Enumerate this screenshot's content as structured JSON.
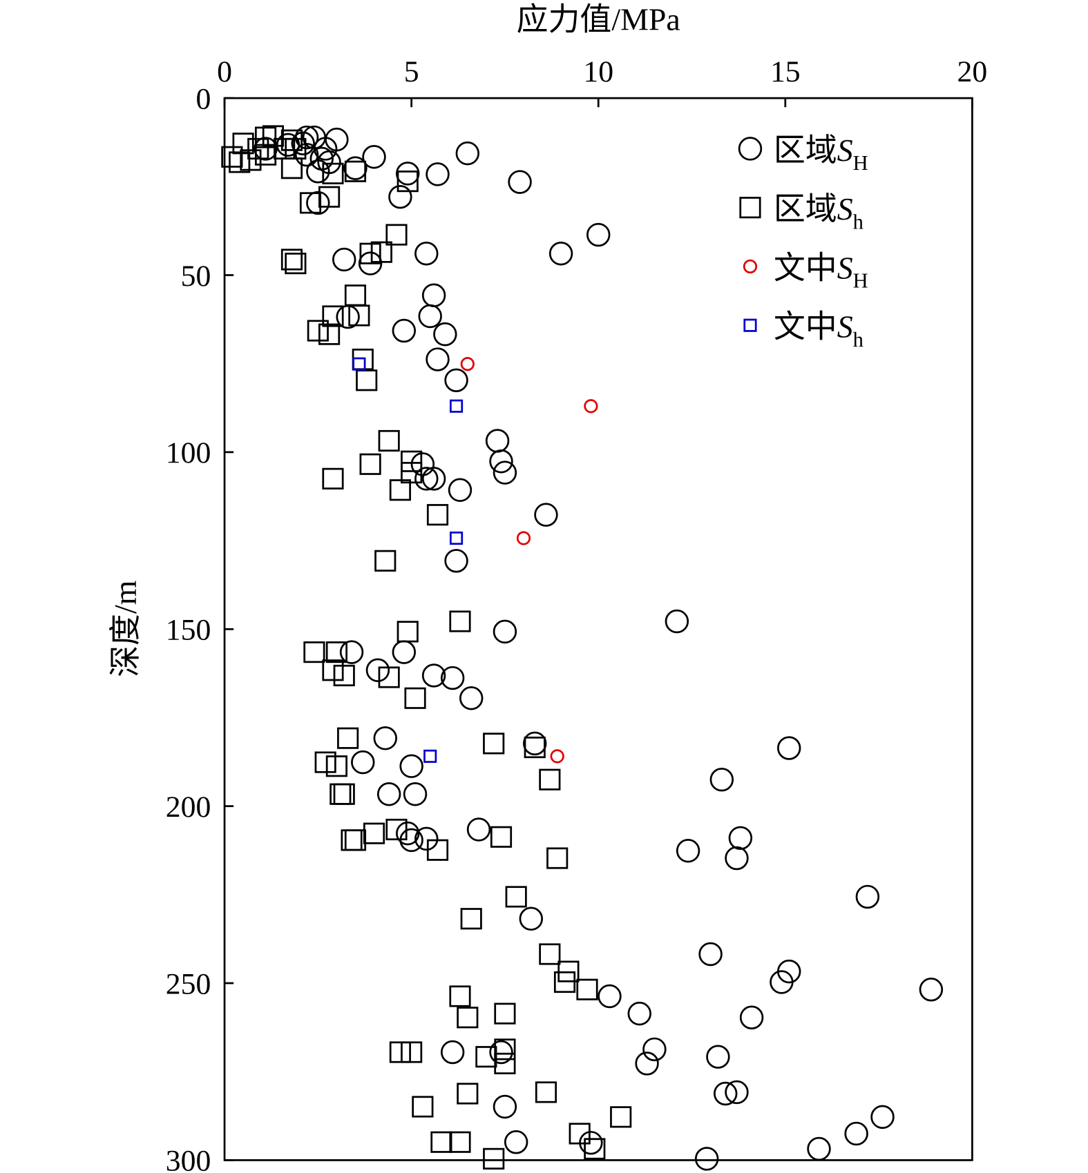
{
  "chart_data": {
    "type": "scatter",
    "title": "",
    "xlabel": "应力值/MPa",
    "ylabel": "深度/m",
    "xlim": [
      0,
      20
    ],
    "ylim": [
      0,
      300
    ],
    "y_inverted": true,
    "x_axis_position": "top",
    "xticks": [
      "0",
      "5",
      "10",
      "15",
      "20"
    ],
    "yticks": [
      "0",
      "50",
      "100",
      "150",
      "200",
      "250",
      "300"
    ],
    "grid": false,
    "legend_position": "top-right",
    "series": [
      {
        "name": "区域S_H",
        "label": {
          "prefix": "区域",
          "symbol": "S",
          "sub": "H"
        },
        "marker": "circle",
        "size": "large",
        "color": "#000000",
        "points": [
          [
            6.5,
            15.6
          ],
          [
            7.9,
            23.7
          ],
          [
            10.0,
            38.6
          ],
          [
            9.0,
            43.9
          ],
          [
            4.0,
            16.6
          ],
          [
            5.7,
            21.5
          ],
          [
            4.9,
            21.3
          ],
          [
            4.7,
            27.9
          ],
          [
            3.5,
            19.8
          ],
          [
            3.0,
            11.7
          ],
          [
            2.4,
            11.1
          ],
          [
            2.2,
            11.1
          ],
          [
            2.1,
            12.8
          ],
          [
            2.7,
            14.3
          ],
          [
            2.6,
            17.1
          ],
          [
            2.8,
            18.1
          ],
          [
            2.5,
            20.7
          ],
          [
            2.2,
            16.0
          ],
          [
            1.1,
            14.3
          ],
          [
            1.7,
            13.2
          ],
          [
            2.5,
            29.6
          ],
          [
            3.2,
            45.6
          ],
          [
            3.9,
            46.7
          ],
          [
            5.4,
            43.9
          ],
          [
            5.6,
            55.7
          ],
          [
            5.5,
            61.6
          ],
          [
            5.9,
            66.7
          ],
          [
            4.8,
            65.7
          ],
          [
            3.3,
            61.8
          ],
          [
            5.7,
            73.8
          ],
          [
            6.2,
            79.7
          ],
          [
            7.3,
            96.8
          ],
          [
            7.4,
            102.6
          ],
          [
            7.5,
            105.8
          ],
          [
            5.3,
            103.4
          ],
          [
            5.6,
            107.5
          ],
          [
            5.4,
            107.5
          ],
          [
            6.3,
            110.7
          ],
          [
            8.6,
            117.7
          ],
          [
            6.2,
            130.7
          ],
          [
            12.1,
            147.8
          ],
          [
            7.5,
            150.7
          ],
          [
            3.4,
            156.5
          ],
          [
            4.8,
            156.5
          ],
          [
            4.1,
            161.6
          ],
          [
            5.6,
            163.1
          ],
          [
            6.1,
            163.8
          ],
          [
            6.6,
            169.5
          ],
          [
            4.3,
            180.8
          ],
          [
            3.7,
            187.6
          ],
          [
            5.0,
            188.7
          ],
          [
            8.3,
            182.3
          ],
          [
            15.1,
            183.6
          ],
          [
            13.3,
            192.5
          ],
          [
            4.4,
            196.6
          ],
          [
            5.1,
            196.6
          ],
          [
            6.8,
            206.6
          ],
          [
            4.9,
            207.7
          ],
          [
            5.0,
            209.6
          ],
          [
            5.4,
            209.2
          ],
          [
            12.4,
            212.6
          ],
          [
            13.8,
            209.0
          ],
          [
            13.7,
            214.7
          ],
          [
            17.2,
            225.6
          ],
          [
            8.2,
            231.8
          ],
          [
            13.0,
            241.8
          ],
          [
            15.1,
            246.7
          ],
          [
            14.9,
            249.7
          ],
          [
            18.9,
            251.8
          ],
          [
            10.3,
            253.7
          ],
          [
            11.1,
            258.6
          ],
          [
            14.1,
            259.7
          ],
          [
            11.5,
            268.7
          ],
          [
            11.3,
            272.7
          ],
          [
            13.2,
            270.8
          ],
          [
            6.1,
            269.5
          ],
          [
            7.4,
            269.5
          ],
          [
            13.4,
            281.2
          ],
          [
            13.7,
            280.8
          ],
          [
            7.5,
            284.9
          ],
          [
            17.6,
            287.8
          ],
          [
            16.9,
            292.5
          ],
          [
            15.9,
            296.8
          ],
          [
            7.8,
            294.9
          ],
          [
            9.8,
            295.1
          ],
          [
            12.9,
            299.6
          ]
        ]
      },
      {
        "name": "区域S_h",
        "label": {
          "prefix": "区域",
          "symbol": "S",
          "sub": "h"
        },
        "marker": "square",
        "size": "large",
        "color": "#000000",
        "points": [
          [
            0.2,
            16.6
          ],
          [
            0.4,
            18.1
          ],
          [
            0.5,
            12.8
          ],
          [
            0.7,
            17.5
          ],
          [
            0.9,
            14.3
          ],
          [
            1.1,
            11.1
          ],
          [
            1.3,
            10.7
          ],
          [
            1.1,
            16.0
          ],
          [
            1.8,
            11.9
          ],
          [
            1.9,
            14.3
          ],
          [
            1.8,
            19.8
          ],
          [
            1.6,
            14.3
          ],
          [
            2.9,
            21.3
          ],
          [
            3.5,
            20.7
          ],
          [
            4.9,
            23.5
          ],
          [
            2.8,
            27.9
          ],
          [
            2.3,
            29.6
          ],
          [
            4.6,
            38.6
          ],
          [
            3.9,
            43.9
          ],
          [
            4.2,
            43.5
          ],
          [
            1.8,
            45.6
          ],
          [
            1.9,
            46.7
          ],
          [
            3.5,
            55.7
          ],
          [
            2.9,
            61.6
          ],
          [
            3.6,
            61.4
          ],
          [
            2.5,
            65.7
          ],
          [
            2.8,
            66.7
          ],
          [
            3.7,
            73.8
          ],
          [
            3.8,
            79.7
          ],
          [
            4.4,
            96.8
          ],
          [
            3.9,
            103.4
          ],
          [
            5.0,
            102.6
          ],
          [
            5.0,
            105.8
          ],
          [
            2.9,
            107.5
          ],
          [
            4.7,
            110.7
          ],
          [
            5.7,
            117.7
          ],
          [
            4.3,
            130.7
          ],
          [
            6.3,
            147.8
          ],
          [
            4.9,
            150.7
          ],
          [
            2.4,
            156.5
          ],
          [
            3.0,
            156.5
          ],
          [
            2.9,
            161.6
          ],
          [
            3.2,
            163.1
          ],
          [
            4.4,
            163.6
          ],
          [
            5.1,
            169.5
          ],
          [
            3.3,
            180.8
          ],
          [
            7.2,
            182.3
          ],
          [
            8.3,
            183.4
          ],
          [
            2.7,
            187.6
          ],
          [
            3.0,
            188.7
          ],
          [
            8.7,
            192.5
          ],
          [
            3.1,
            196.6
          ],
          [
            3.2,
            196.6
          ],
          [
            4.0,
            207.7
          ],
          [
            4.6,
            206.6
          ],
          [
            3.4,
            209.6
          ],
          [
            3.5,
            209.6
          ],
          [
            7.4,
            208.7
          ],
          [
            5.7,
            212.4
          ],
          [
            8.9,
            214.7
          ],
          [
            7.8,
            225.6
          ],
          [
            6.6,
            231.8
          ],
          [
            8.7,
            241.8
          ],
          [
            9.2,
            246.7
          ],
          [
            9.1,
            249.7
          ],
          [
            9.7,
            251.8
          ],
          [
            6.3,
            253.7
          ],
          [
            7.5,
            258.6
          ],
          [
            6.5,
            259.7
          ],
          [
            4.7,
            269.5
          ],
          [
            5.0,
            269.5
          ],
          [
            7.5,
            268.7
          ],
          [
            7.0,
            270.8
          ],
          [
            7.5,
            272.7
          ],
          [
            8.6,
            280.8
          ],
          [
            6.5,
            281.2
          ],
          [
            5.3,
            284.9
          ],
          [
            10.6,
            287.8
          ],
          [
            9.5,
            292.5
          ],
          [
            5.8,
            294.9
          ],
          [
            6.3,
            294.9
          ],
          [
            9.9,
            296.8
          ],
          [
            7.2,
            299.6
          ]
        ]
      },
      {
        "name": "文中S_H",
        "label": {
          "prefix": "文中",
          "symbol": "S",
          "sub": "H"
        },
        "marker": "circle",
        "size": "small",
        "color": "#e00000",
        "points": [
          [
            6.5,
            75.1
          ],
          [
            9.8,
            87.0
          ],
          [
            8.0,
            124.3
          ],
          [
            8.9,
            185.9
          ]
        ]
      },
      {
        "name": "文中S_h",
        "label": {
          "prefix": "文中",
          "symbol": "S",
          "sub": "h"
        },
        "marker": "square",
        "size": "small",
        "color": "#0000d0",
        "points": [
          [
            3.6,
            75.1
          ],
          [
            6.2,
            87.0
          ],
          [
            6.2,
            124.3
          ],
          [
            5.5,
            185.9
          ]
        ]
      }
    ]
  }
}
